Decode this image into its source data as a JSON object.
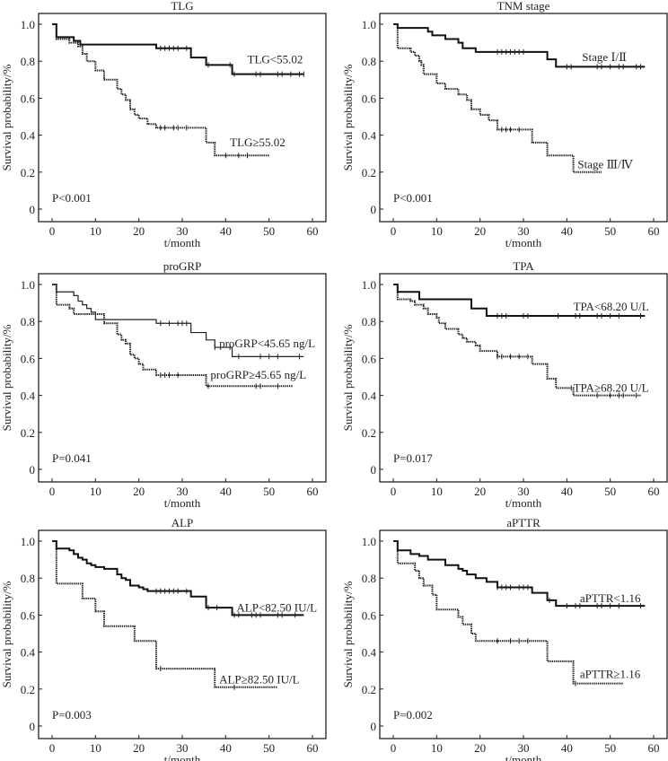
{
  "chart_data": [
    {
      "type": "line",
      "subtype": "kaplan-meier",
      "title": "TLG",
      "xlabel": "t/month",
      "ylabel": "Survival probability/%",
      "xlim": [
        0,
        60
      ],
      "ylim": [
        0,
        1.0
      ],
      "xticks": [
        "0",
        "10",
        "20",
        "30",
        "40",
        "50",
        "60"
      ],
      "yticks": [
        "0",
        "0.2",
        "0.4",
        "0.6",
        "0.8",
        "1.0"
      ],
      "p_value": "P<0.001",
      "series": [
        {
          "name": "TLG<55.02",
          "style": "solid-thick",
          "end": 58,
          "steps": [
            [
              0,
              1
            ],
            [
              1,
              0.93
            ],
            [
              5,
              0.91
            ],
            [
              6.5,
              0.89
            ],
            [
              24,
              0.87
            ],
            [
              32,
              0.82
            ],
            [
              35.5,
              0.78
            ],
            [
              41.5,
              0.73
            ]
          ],
          "censored": [
            25,
            26,
            27,
            28,
            29,
            31,
            36,
            41,
            42,
            47,
            48,
            52,
            53,
            55,
            57,
            58
          ]
        },
        {
          "name": "TLG≥55.02",
          "style": "dotted",
          "end": 50,
          "steps": [
            [
              0,
              1
            ],
            [
              1,
              0.92
            ],
            [
              4,
              0.9
            ],
            [
              6,
              0.88
            ],
            [
              7,
              0.84
            ],
            [
              8,
              0.8
            ],
            [
              10,
              0.75
            ],
            [
              12,
              0.7
            ],
            [
              15,
              0.65
            ],
            [
              16,
              0.62
            ],
            [
              17,
              0.59
            ],
            [
              18,
              0.54
            ],
            [
              19,
              0.51
            ],
            [
              20,
              0.49
            ],
            [
              22,
              0.46
            ],
            [
              24,
              0.44
            ],
            [
              35.5,
              0.36
            ],
            [
              37.5,
              0.29
            ]
          ],
          "censored": [
            25,
            26,
            28,
            29,
            31,
            40,
            43,
            45
          ]
        }
      ]
    },
    {
      "type": "line",
      "subtype": "kaplan-meier",
      "title": "TNM stage",
      "xlabel": "t/month",
      "ylabel": "Survival probability/%",
      "xlim": [
        0,
        60
      ],
      "ylim": [
        0,
        1.0
      ],
      "xticks": [
        "0",
        "10",
        "20",
        "30",
        "40",
        "50",
        "60"
      ],
      "yticks": [
        "0",
        "0.2",
        "0.4",
        "0.6",
        "0.8",
        "1.0"
      ],
      "p_value": "P<0.001",
      "series": [
        {
          "name": "Stage Ⅰ/Ⅱ",
          "style": "solid-thick",
          "end": 58,
          "steps": [
            [
              0,
              1
            ],
            [
              1,
              0.98
            ],
            [
              8,
              0.96
            ],
            [
              9,
              0.94
            ],
            [
              12,
              0.92
            ],
            [
              15,
              0.9
            ],
            [
              16,
              0.87
            ],
            [
              19,
              0.85
            ],
            [
              35.5,
              0.81
            ],
            [
              37.5,
              0.77
            ]
          ],
          "censored": [
            24,
            25,
            26,
            27,
            28,
            29,
            30,
            40,
            41,
            47,
            48,
            50,
            52,
            53,
            56,
            57
          ]
        },
        {
          "name": "Stage Ⅲ/Ⅳ",
          "style": "dotted",
          "end": 48,
          "steps": [
            [
              0,
              1
            ],
            [
              1,
              0.87
            ],
            [
              4,
              0.85
            ],
            [
              5,
              0.83
            ],
            [
              6,
              0.8
            ],
            [
              6.5,
              0.78
            ],
            [
              7,
              0.73
            ],
            [
              10,
              0.68
            ],
            [
              12,
              0.65
            ],
            [
              15,
              0.62
            ],
            [
              17,
              0.59
            ],
            [
              18,
              0.54
            ],
            [
              20,
              0.51
            ],
            [
              22,
              0.48
            ],
            [
              24,
              0.43
            ],
            [
              32,
              0.36
            ],
            [
              35.5,
              0.29
            ],
            [
              41.5,
              0.2
            ]
          ],
          "censored": [
            25,
            26,
            27,
            29
          ]
        }
      ]
    },
    {
      "type": "line",
      "subtype": "kaplan-meier",
      "title": "proGRP",
      "xlabel": "t/month",
      "ylabel": "Survival probability/%",
      "xlim": [
        0,
        60
      ],
      "ylim": [
        0,
        1.0
      ],
      "xticks": [
        "0",
        "10",
        "20",
        "30",
        "40",
        "50",
        "60"
      ],
      "yticks": [
        "0",
        "0.2",
        "0.4",
        "0.6",
        "0.8",
        "1.0"
      ],
      "p_value": "P=0.041",
      "series": [
        {
          "name": "proGRP<45.65 ng/L",
          "style": "solid-thin",
          "end": 58,
          "steps": [
            [
              0,
              1
            ],
            [
              1,
              0.96
            ],
            [
              5,
              0.94
            ],
            [
              6,
              0.91
            ],
            [
              7,
              0.89
            ],
            [
              8,
              0.87
            ],
            [
              9,
              0.85
            ],
            [
              10,
              0.81
            ],
            [
              24,
              0.79
            ],
            [
              32,
              0.74
            ],
            [
              35.5,
              0.7
            ],
            [
              37.5,
              0.66
            ],
            [
              41.5,
              0.61
            ]
          ],
          "censored": [
            25,
            27,
            29,
            30,
            31,
            37.5,
            41,
            43,
            48,
            50,
            52,
            57
          ]
        },
        {
          "name": "proGRP≥45.65 ng/L",
          "style": "dotted",
          "end": 55.5,
          "steps": [
            [
              0,
              1
            ],
            [
              1,
              0.89
            ],
            [
              4,
              0.87
            ],
            [
              5,
              0.84
            ],
            [
              12,
              0.79
            ],
            [
              15,
              0.73
            ],
            [
              16,
              0.7
            ],
            [
              17,
              0.68
            ],
            [
              18,
              0.62
            ],
            [
              19,
              0.6
            ],
            [
              20,
              0.57
            ],
            [
              21,
              0.54
            ],
            [
              24,
              0.51
            ],
            [
              35.5,
              0.45
            ]
          ],
          "censored": [
            25,
            26,
            27,
            29,
            36,
            47,
            48,
            52
          ]
        }
      ]
    },
    {
      "type": "line",
      "subtype": "kaplan-meier",
      "title": "TPA",
      "xlabel": "t/month",
      "ylabel": "Survival probability/%",
      "xlim": [
        0,
        60
      ],
      "ylim": [
        0,
        1.0
      ],
      "xticks": [
        "0",
        "10",
        "20",
        "30",
        "40",
        "50",
        "60"
      ],
      "yticks": [
        "0",
        "0.2",
        "0.4",
        "0.6",
        "0.8",
        "1.0"
      ],
      "p_value": "P=0.017",
      "series": [
        {
          "name": "TPA<68.20 U/L",
          "style": "solid-thick",
          "end": 58,
          "steps": [
            [
              0,
              1
            ],
            [
              1,
              0.96
            ],
            [
              6,
              0.92
            ],
            [
              18,
              0.87
            ],
            [
              21.5,
              0.83
            ]
          ],
          "censored": [
            24,
            25,
            26,
            30,
            31,
            38,
            42,
            43,
            47,
            48,
            50,
            52,
            57
          ]
        },
        {
          "name": "TPA≥68.20 U/L",
          "style": "dotted",
          "end": 57,
          "steps": [
            [
              0,
              1
            ],
            [
              1,
              0.92
            ],
            [
              4,
              0.91
            ],
            [
              5,
              0.89
            ],
            [
              7,
              0.87
            ],
            [
              8,
              0.84
            ],
            [
              10,
              0.82
            ],
            [
              10.5,
              0.79
            ],
            [
              12,
              0.76
            ],
            [
              15,
              0.73
            ],
            [
              16,
              0.71
            ],
            [
              17,
              0.69
            ],
            [
              19,
              0.67
            ],
            [
              20,
              0.64
            ],
            [
              24,
              0.61
            ],
            [
              32,
              0.57
            ],
            [
              35.5,
              0.49
            ],
            [
              37.5,
              0.44
            ],
            [
              41.5,
              0.4
            ]
          ],
          "censored": [
            24,
            25,
            27,
            29,
            31,
            41,
            47,
            50,
            52,
            53,
            56
          ]
        }
      ]
    },
    {
      "type": "line",
      "subtype": "kaplan-meier",
      "title": "ALP",
      "xlabel": "t/month",
      "ylabel": "Survival probability/%",
      "xlim": [
        0,
        60
      ],
      "ylim": [
        0,
        1.0
      ],
      "xticks": [
        "0",
        "10",
        "20",
        "30",
        "40",
        "50",
        "60"
      ],
      "yticks": [
        "0",
        "0.2",
        "0.4",
        "0.6",
        "0.8",
        "1.0"
      ],
      "p_value": "P=0.003",
      "series": [
        {
          "name": "ALP<82.50 IU/L",
          "style": "solid-thick",
          "end": 58,
          "steps": [
            [
              0,
              1
            ],
            [
              1,
              0.96
            ],
            [
              4,
              0.95
            ],
            [
              5,
              0.93
            ],
            [
              6,
              0.91
            ],
            [
              7,
              0.9
            ],
            [
              8,
              0.88
            ],
            [
              9,
              0.87
            ],
            [
              10,
              0.86
            ],
            [
              12,
              0.85
            ],
            [
              15,
              0.82
            ],
            [
              16,
              0.8
            ],
            [
              17,
              0.79
            ],
            [
              18,
              0.76
            ],
            [
              20,
              0.75
            ],
            [
              21,
              0.74
            ],
            [
              22,
              0.73
            ],
            [
              32,
              0.7
            ],
            [
              35.5,
              0.64
            ],
            [
              41.5,
              0.6
            ]
          ],
          "censored": [
            24,
            25,
            26,
            27,
            28,
            29,
            31,
            36,
            38,
            42,
            43,
            46,
            47,
            48,
            52,
            53,
            56
          ]
        },
        {
          "name": "ALP≥82.50 IU/L",
          "style": "dotted",
          "end": 52,
          "steps": [
            [
              0,
              1
            ],
            [
              1,
              0.77
            ],
            [
              7,
              0.69
            ],
            [
              10,
              0.62
            ],
            [
              12,
              0.54
            ],
            [
              19,
              0.46
            ],
            [
              24,
              0.31
            ],
            [
              37.5,
              0.21
            ]
          ],
          "censored": [
            25,
            42
          ]
        }
      ]
    },
    {
      "type": "line",
      "subtype": "kaplan-meier",
      "title": "aPTTR",
      "xlabel": "t/month",
      "ylabel": "Survival probability/%",
      "xlim": [
        0,
        60
      ],
      "ylim": [
        0,
        1.0
      ],
      "xticks": [
        "0",
        "10",
        "20",
        "30",
        "40",
        "50",
        "60"
      ],
      "yticks": [
        "0",
        "0.2",
        "0.4",
        "0.6",
        "0.8",
        "1.0"
      ],
      "p_value": "P=0.002",
      "series": [
        {
          "name": "aPTTR<1.16",
          "style": "solid-thick",
          "end": 58,
          "steps": [
            [
              0,
              1
            ],
            [
              1,
              0.95
            ],
            [
              4,
              0.93
            ],
            [
              6,
              0.92
            ],
            [
              8,
              0.9
            ],
            [
              12,
              0.87
            ],
            [
              15,
              0.85
            ],
            [
              16,
              0.84
            ],
            [
              17,
              0.82
            ],
            [
              19,
              0.8
            ],
            [
              21.5,
              0.78
            ],
            [
              24,
              0.75
            ],
            [
              32,
              0.72
            ],
            [
              35.5,
              0.68
            ],
            [
              37.5,
              0.65
            ]
          ],
          "censored": [
            24,
            25,
            26,
            27,
            29,
            30,
            31,
            36,
            40,
            42,
            43,
            47,
            48,
            50,
            52,
            57
          ]
        },
        {
          "name": "aPTTR≥1.16",
          "style": "dotted",
          "end": 53,
          "steps": [
            [
              0,
              1
            ],
            [
              1,
              0.88
            ],
            [
              5,
              0.84
            ],
            [
              6,
              0.8
            ],
            [
              7,
              0.76
            ],
            [
              9,
              0.71
            ],
            [
              10,
              0.63
            ],
            [
              15,
              0.59
            ],
            [
              16,
              0.55
            ],
            [
              18,
              0.5
            ],
            [
              19,
              0.46
            ],
            [
              35.5,
              0.35
            ],
            [
              41.5,
              0.23
            ]
          ],
          "censored": [
            24,
            27,
            29,
            31,
            42
          ]
        }
      ]
    }
  ]
}
